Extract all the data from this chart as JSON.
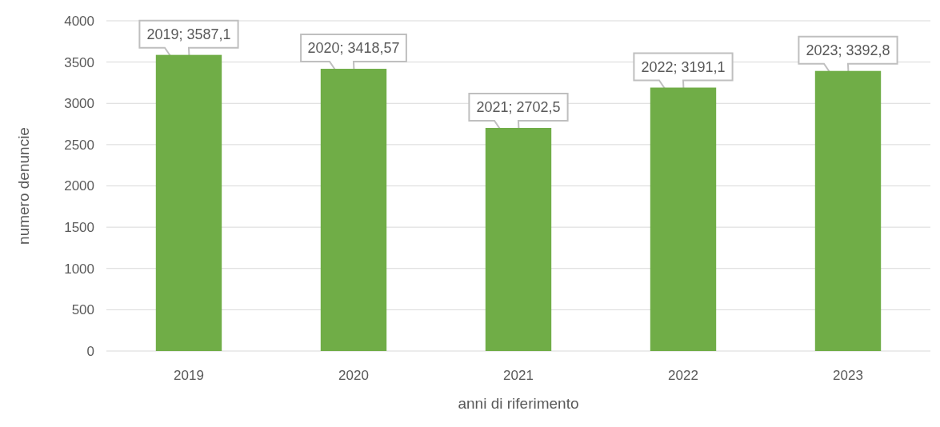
{
  "chart_data": {
    "type": "bar",
    "xlabel": "anni di riferimento",
    "ylabel": "numero denuncie",
    "categories": [
      "2019",
      "2020",
      "2021",
      "2022",
      "2023"
    ],
    "values": [
      3587.1,
      3418.57,
      2702.5,
      3191.1,
      3392.8
    ],
    "value_labels": [
      "2019; 3587,1",
      "2020; 3418,57",
      "2021; 2702,5",
      "2022; 3191,1",
      "2023; 3392,8"
    ],
    "color": "#70ad47",
    "ylim": [
      0,
      4000
    ],
    "yticks": [
      0,
      500,
      1000,
      1500,
      2000,
      2500,
      3000,
      3500,
      4000
    ],
    "grid": "y"
  }
}
